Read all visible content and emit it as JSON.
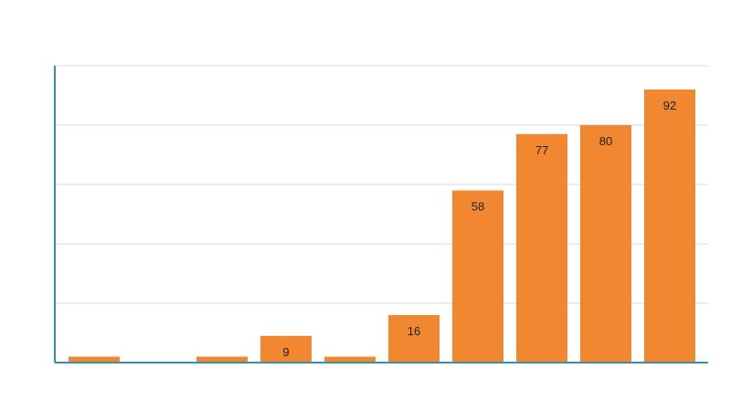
{
  "chart_data": {
    "type": "bar",
    "categories": [
      "",
      "",
      "",
      "",
      "",
      "",
      "",
      "",
      "",
      ""
    ],
    "values": [
      2,
      0,
      2,
      9,
      2,
      16,
      58,
      77,
      80,
      92
    ],
    "value_labels": [
      "",
      "",
      "",
      "9",
      "",
      "16",
      "58",
      "77",
      "80",
      "92"
    ],
    "title": "",
    "xlabel": "",
    "ylabel": "",
    "ylim": [
      0,
      100
    ],
    "grid": true,
    "legend": "none",
    "colors": {
      "bar": "#f28732",
      "axis": "#3a8fa3",
      "grid": "#d9d9d9"
    }
  }
}
